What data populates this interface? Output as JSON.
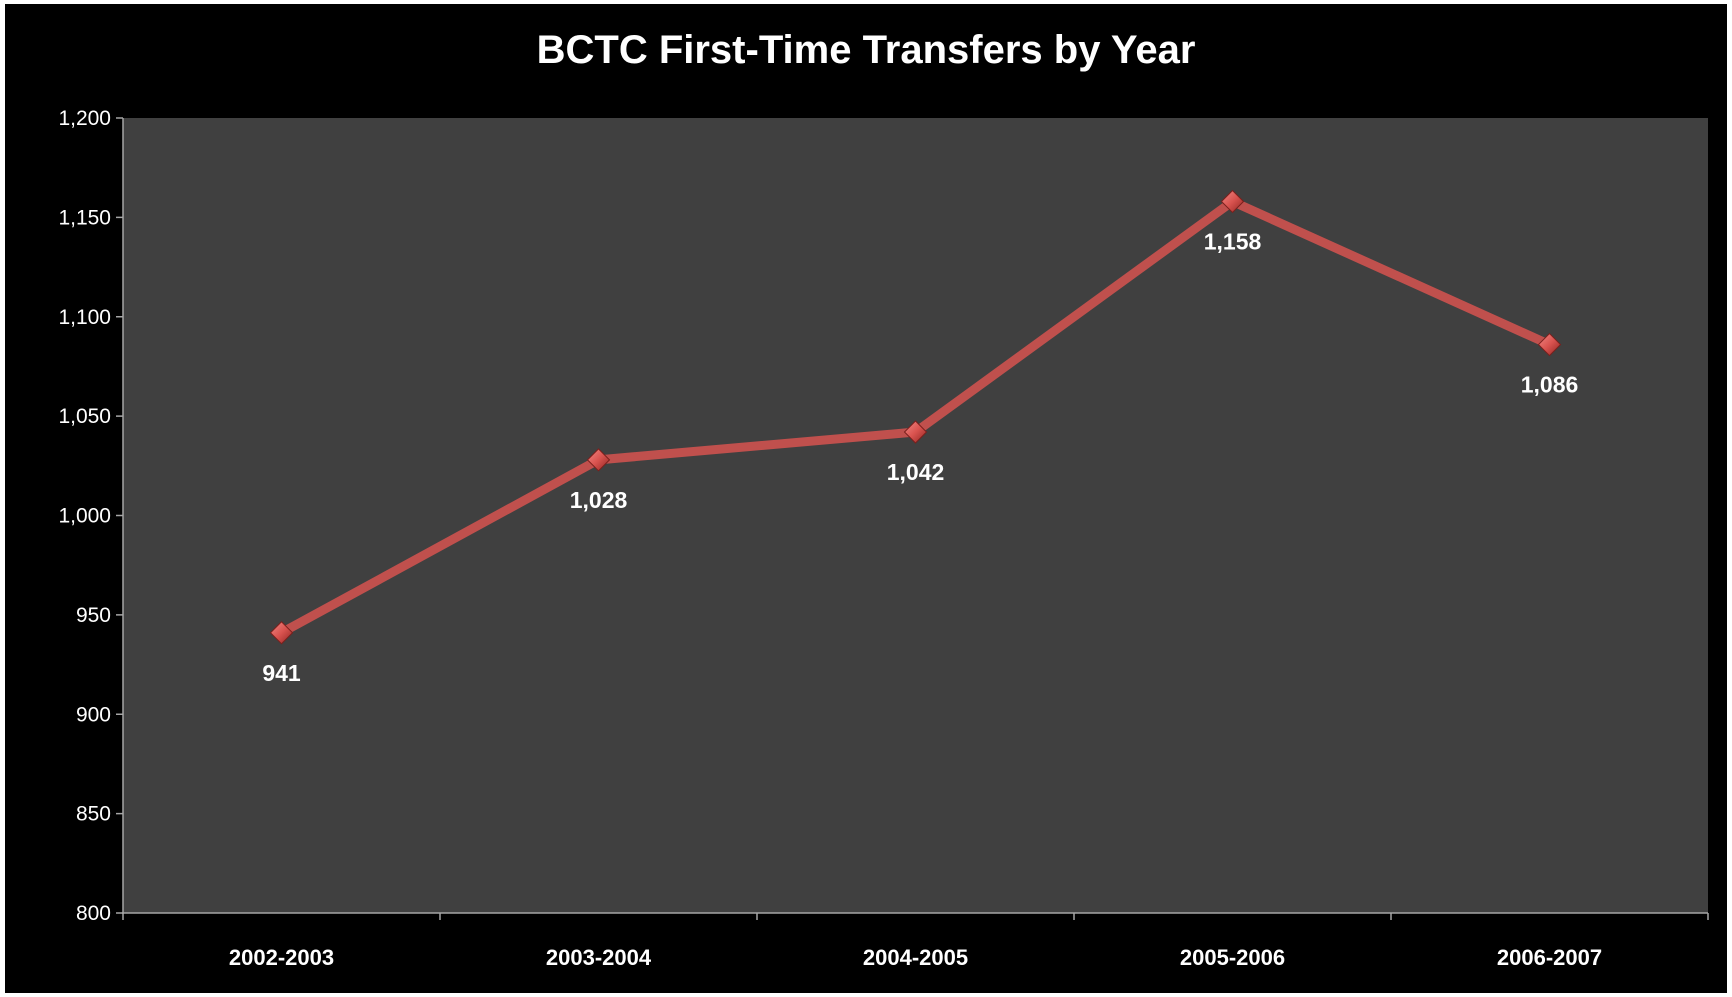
{
  "chart_data": {
    "type": "line",
    "title": "BCTC First-Time Transfers by Year",
    "xlabel": "",
    "ylabel": "",
    "categories": [
      "2002-2003",
      "2003-2004",
      "2004-2005",
      "2005-2006",
      "2006-2007"
    ],
    "series": [
      {
        "values": [
          941,
          1028,
          1042,
          1158,
          1086
        ]
      }
    ],
    "data_labels": [
      "941",
      "1,028",
      "1,042",
      "1,158",
      "1,086"
    ],
    "y_ticks": [
      "1,200",
      "1,150",
      "1,100",
      "1,050",
      "1,000",
      "950",
      "900",
      "850",
      "800"
    ],
    "ylim": [
      800,
      1200
    ],
    "grid": false,
    "legend": "none",
    "colors": {
      "background": "#000000",
      "plot_area": "#404040",
      "line": "#c0504d",
      "marker": "#d9534f",
      "text": "#ffffff"
    }
  }
}
